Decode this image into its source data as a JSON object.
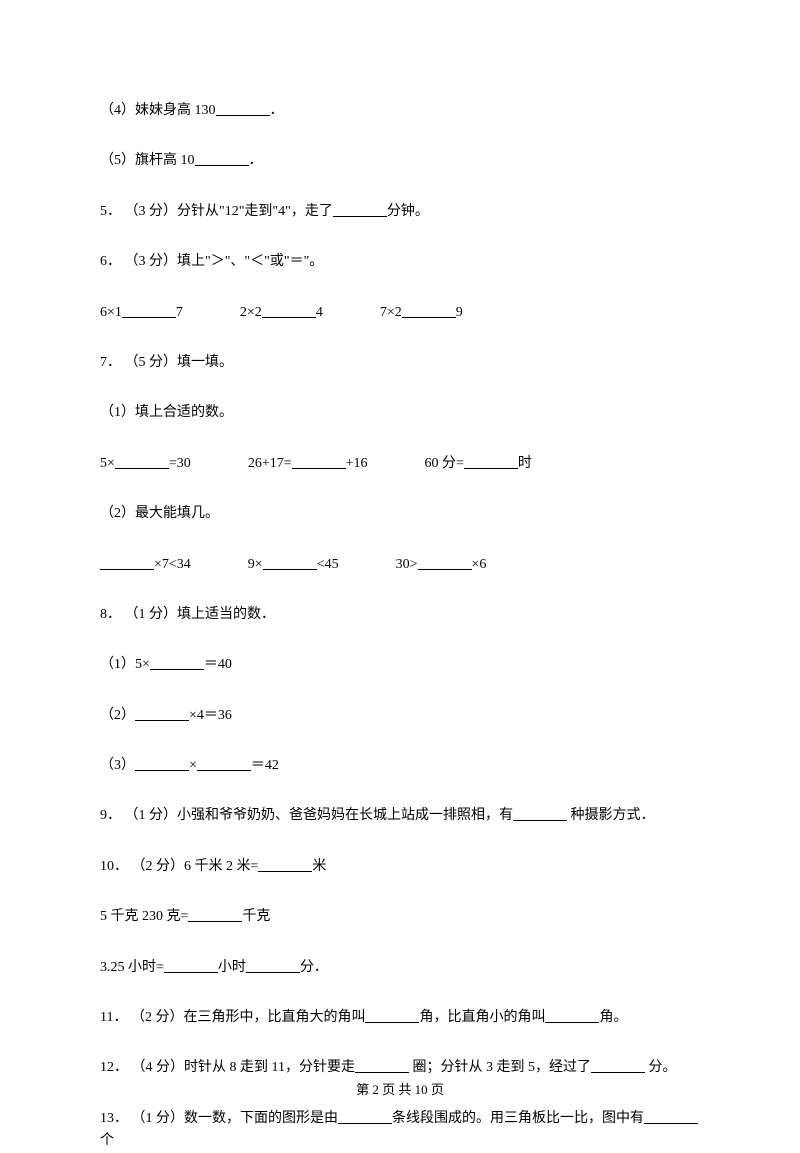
{
  "q4_sub4": {
    "prefix": "（4）妹妹身高 130",
    "suffix": "．"
  },
  "q4_sub5": {
    "prefix": "（5）旗杆高 10",
    "suffix": "．"
  },
  "q5": {
    "prefix": "5． （3 分）分针从\"12\"走到\"4\"，走了",
    "suffix": "分钟。"
  },
  "q6_header": "6． （3 分）填上\"＞\"、\"＜\"或\"＝\"。",
  "q6_row": {
    "a": "6×1",
    "b": "7",
    "c": "2×2",
    "d": "4",
    "e": "7×2",
    "f": "9"
  },
  "q7_header": "7． （5 分）填一填。",
  "q7_sub1": "（1）填上合适的数。",
  "q7_row1": {
    "a": "5×",
    "b": "=30",
    "c": "26+17=",
    "d": "+16",
    "e": "60 分=",
    "f": "时"
  },
  "q7_sub2": "（2）最大能填几。",
  "q7_row2": {
    "a": "×7<34",
    "b": "9×",
    "c": "<45",
    "d": "30>",
    "e": "×6"
  },
  "q8_header": "8． （1 分）填上适当的数．",
  "q8_sub1": {
    "prefix": "（1）5×",
    "suffix": "＝40"
  },
  "q8_sub2": {
    "prefix": "（2）",
    "suffix": "×4＝36"
  },
  "q8_sub3": {
    "prefix": "（3）",
    "mid": "×",
    "suffix": "＝42"
  },
  "q9": {
    "prefix": "9． （1 分）小强和爷爷奶奶、爸爸妈妈在长城上站成一排照相，有",
    "suffix": " 种摄影方式．"
  },
  "q10_line1": {
    "prefix": "10． （2 分）6 千米 2 米=",
    "suffix": "米"
  },
  "q10_line2": {
    "prefix": "5 千克 230 克=",
    "suffix": "千克"
  },
  "q10_line3": {
    "prefix": "3.25 小时=",
    "mid": "小时",
    "suffix": "分．"
  },
  "q11": {
    "prefix": "11． （2 分）在三角形中，比直角大的角叫",
    "mid": "角，比直角小的角叫",
    "suffix": "角。"
  },
  "q12": {
    "prefix": "12． （4 分）时针从 8 走到 11，分针要走",
    "mid": " 圈；分针从 3 走到 5，经过了",
    "suffix": " 分。"
  },
  "q13": {
    "prefix": "13． （1 分）数一数，下面的图形是由",
    "mid": "条线段围成的。用三角板比一比，图中有",
    "suffix": "个"
  },
  "footer": "第 2 页 共 10 页"
}
